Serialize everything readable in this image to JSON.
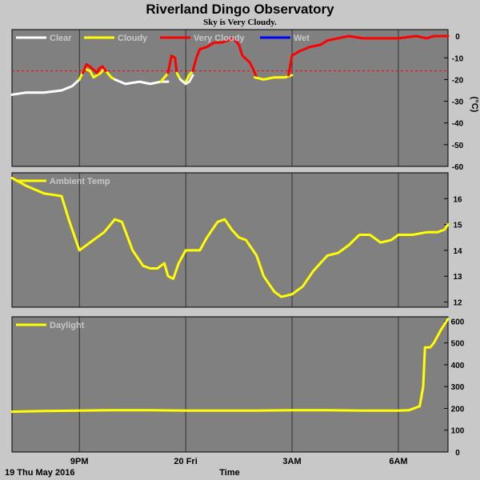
{
  "header": {
    "title": "Riverland Dingo Observatory",
    "subtitle": "Sky is Very Cloudy."
  },
  "footer": {
    "date_label": "19 Thu May 2016",
    "x_axis_label": "Time"
  },
  "x_ticks": [
    {
      "label": "9PM",
      "t": 21.0
    },
    {
      "label": "20 Fri",
      "t": 24.0
    },
    {
      "label": "3AM",
      "t": 27.0
    },
    {
      "label": "6AM",
      "t": 30.0
    }
  ],
  "x_range_hours": [
    19.1,
    31.4
  ],
  "colors": {
    "background": "#c8c8c8",
    "panel": "#808080",
    "clear": "#ffffff",
    "cloudy": "#ffff00",
    "very_cloudy": "#ff0000",
    "wet": "#0000ff",
    "grid": "#000000",
    "threshold": "#ff0000"
  },
  "chart_data": [
    {
      "type": "line",
      "legend": [
        "Clear",
        "Cloudy",
        "Very Cloudy",
        "Wet"
      ],
      "ylabel": "(°C)",
      "ylim": [
        -60,
        3
      ],
      "y_ticks": [
        0,
        -10,
        -20,
        -30,
        -40,
        -50,
        -60
      ],
      "threshold": -16,
      "series": [
        {
          "name": "Clear",
          "color": "#ffffff",
          "points": [
            [
              19.1,
              -27
            ],
            [
              19.5,
              -26
            ],
            [
              20.0,
              -26
            ],
            [
              20.5,
              -25
            ],
            [
              20.8,
              -23
            ],
            [
              21.0,
              -20
            ]
          ]
        },
        {
          "name": "Cloudy",
          "color": "#ffff00",
          "points": [
            [
              21.0,
              -20
            ],
            [
              21.15,
              -15
            ],
            [
              21.3,
              -16
            ],
            [
              21.4,
              -19
            ],
            [
              21.5,
              -18
            ],
            [
              21.6,
              -17
            ],
            [
              21.7,
              -15
            ],
            [
              21.8,
              -17
            ],
            [
              21.9,
              -19
            ],
            [
              22.0,
              -20
            ]
          ]
        },
        {
          "name": "Very Cloudy",
          "color": "#ff0000",
          "points": [
            [
              21.1,
              -17
            ],
            [
              21.2,
              -13
            ],
            [
              21.3,
              -14
            ],
            [
              21.5,
              -17
            ],
            [
              21.55,
              -15
            ],
            [
              21.65,
              -14
            ],
            [
              21.75,
              -16
            ]
          ]
        },
        {
          "name": "Clear",
          "color": "#ffffff",
          "points": [
            [
              22.0,
              -20
            ],
            [
              22.3,
              -22
            ],
            [
              22.7,
              -21
            ],
            [
              23.0,
              -22
            ],
            [
              23.3,
              -21
            ],
            [
              23.5,
              -21
            ]
          ]
        },
        {
          "name": "Cloudy",
          "color": "#ffff00",
          "points": [
            [
              23.3,
              -21
            ],
            [
              23.5,
              -17
            ]
          ]
        },
        {
          "name": "Very Cloudy",
          "color": "#ff0000",
          "points": [
            [
              23.5,
              -17
            ],
            [
              23.6,
              -9
            ],
            [
              23.7,
              -10
            ],
            [
              23.75,
              -17
            ]
          ]
        },
        {
          "name": "Cloudy",
          "color": "#ffff00",
          "points": [
            [
              23.75,
              -17
            ],
            [
              23.85,
              -20
            ]
          ]
        },
        {
          "name": "Clear",
          "color": "#ffffff",
          "points": [
            [
              23.85,
              -20
            ],
            [
              24.0,
              -22
            ],
            [
              24.1,
              -21
            ],
            [
              24.2,
              -18
            ]
          ]
        },
        {
          "name": "Cloudy",
          "color": "#ffff00",
          "points": [
            [
              24.0,
              -21
            ],
            [
              24.1,
              -18
            ],
            [
              24.2,
              -16
            ]
          ]
        },
        {
          "name": "Very Cloudy",
          "color": "#ff0000",
          "points": [
            [
              24.2,
              -16
            ],
            [
              24.3,
              -10
            ],
            [
              24.4,
              -6
            ],
            [
              24.6,
              -5
            ],
            [
              24.8,
              -3
            ],
            [
              25.0,
              -3
            ],
            [
              25.2,
              -2
            ],
            [
              25.3,
              -1
            ],
            [
              25.4,
              -2
            ],
            [
              25.5,
              -4
            ],
            [
              25.6,
              -9
            ],
            [
              25.8,
              -12
            ],
            [
              25.9,
              -15
            ],
            [
              26.0,
              -19
            ]
          ]
        },
        {
          "name": "Cloudy",
          "color": "#ffff00",
          "points": [
            [
              25.95,
              -19
            ],
            [
              26.2,
              -20
            ],
            [
              26.5,
              -19
            ],
            [
              26.8,
              -19
            ],
            [
              27.0,
              -18
            ]
          ]
        },
        {
          "name": "Very Cloudy",
          "color": "#ff0000",
          "points": [
            [
              26.9,
              -18
            ],
            [
              27.0,
              -9
            ],
            [
              27.2,
              -7
            ],
            [
              27.5,
              -5
            ],
            [
              27.8,
              -4
            ],
            [
              28.0,
              -2
            ],
            [
              28.3,
              -1
            ],
            [
              28.6,
              0
            ],
            [
              29.0,
              -1
            ],
            [
              29.5,
              -1
            ],
            [
              30.0,
              -1
            ],
            [
              30.5,
              0
            ],
            [
              30.8,
              -1
            ],
            [
              31.0,
              0
            ],
            [
              31.2,
              0
            ],
            [
              31.4,
              0
            ]
          ]
        }
      ]
    },
    {
      "type": "line",
      "legend": [
        "Ambient Temp"
      ],
      "ylim": [
        11.8,
        17.0
      ],
      "y_ticks": [
        12,
        13,
        14,
        15,
        16
      ],
      "series": [
        {
          "name": "Ambient Temp",
          "color": "#ffff00",
          "points": [
            [
              19.1,
              16.8
            ],
            [
              19.5,
              16.5
            ],
            [
              20.0,
              16.2
            ],
            [
              20.5,
              16.1
            ],
            [
              20.7,
              15.2
            ],
            [
              21.0,
              14.0
            ],
            [
              21.3,
              14.3
            ],
            [
              21.7,
              14.7
            ],
            [
              22.0,
              15.2
            ],
            [
              22.2,
              15.1
            ],
            [
              22.5,
              14.0
            ],
            [
              22.8,
              13.4
            ],
            [
              23.0,
              13.3
            ],
            [
              23.2,
              13.3
            ],
            [
              23.4,
              13.5
            ],
            [
              23.5,
              13.0
            ],
            [
              23.65,
              12.9
            ],
            [
              23.8,
              13.5
            ],
            [
              24.0,
              14.0
            ],
            [
              24.2,
              14.0
            ],
            [
              24.4,
              14.0
            ],
            [
              24.6,
              14.5
            ],
            [
              24.9,
              15.1
            ],
            [
              25.1,
              15.2
            ],
            [
              25.3,
              14.8
            ],
            [
              25.5,
              14.5
            ],
            [
              25.7,
              14.4
            ],
            [
              26.0,
              13.8
            ],
            [
              26.2,
              13.0
            ],
            [
              26.5,
              12.4
            ],
            [
              26.7,
              12.2
            ],
            [
              27.0,
              12.3
            ],
            [
              27.3,
              12.6
            ],
            [
              27.6,
              13.2
            ],
            [
              28.0,
              13.8
            ],
            [
              28.3,
              13.9
            ],
            [
              28.6,
              14.2
            ],
            [
              28.9,
              14.6
            ],
            [
              29.2,
              14.6
            ],
            [
              29.5,
              14.3
            ],
            [
              29.8,
              14.4
            ],
            [
              30.0,
              14.6
            ],
            [
              30.4,
              14.6
            ],
            [
              30.8,
              14.7
            ],
            [
              31.1,
              14.7
            ],
            [
              31.3,
              14.8
            ],
            [
              31.4,
              15.0
            ]
          ]
        }
      ]
    },
    {
      "type": "line",
      "legend": [
        "Daylight"
      ],
      "ylim": [
        0,
        620
      ],
      "y_ticks": [
        0,
        100,
        200,
        300,
        400,
        500,
        600
      ],
      "series": [
        {
          "name": "Daylight",
          "color": "#ffff00",
          "points": [
            [
              19.1,
              185
            ],
            [
              20.0,
              188
            ],
            [
              21.0,
              190
            ],
            [
              22.0,
              192
            ],
            [
              23.0,
              192
            ],
            [
              24.0,
              190
            ],
            [
              25.0,
              190
            ],
            [
              26.0,
              190
            ],
            [
              27.0,
              192
            ],
            [
              28.0,
              192
            ],
            [
              29.0,
              190
            ],
            [
              30.0,
              190
            ],
            [
              30.3,
              192
            ],
            [
              30.6,
              210
            ],
            [
              30.7,
              300
            ],
            [
              30.75,
              480
            ],
            [
              30.9,
              480
            ],
            [
              31.0,
              500
            ],
            [
              31.2,
              560
            ],
            [
              31.4,
              610
            ]
          ]
        }
      ]
    }
  ]
}
